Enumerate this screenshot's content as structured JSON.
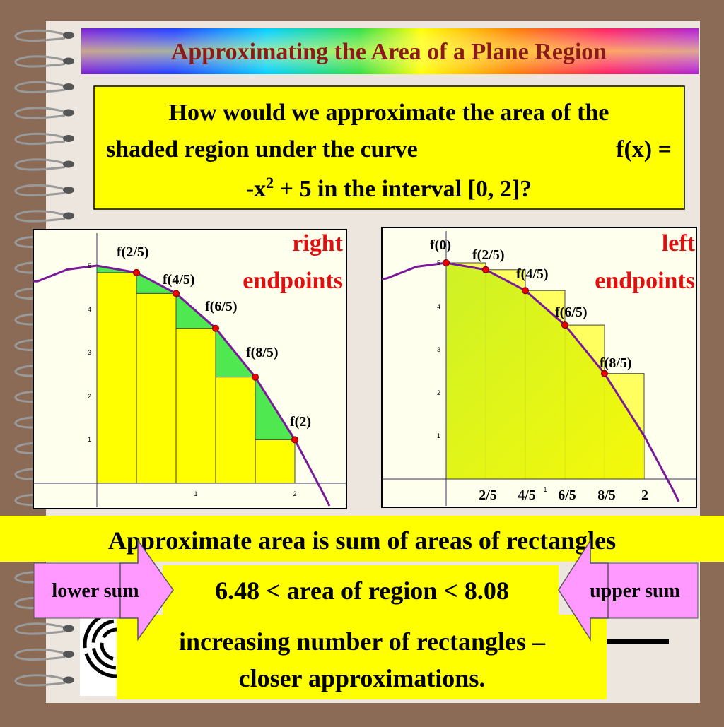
{
  "title": "Approximating the Area of a Plane Region",
  "question": {
    "line1": "How would we approximate the area of the",
    "line2": "shaded region under the curve",
    "line2_func": "f(x) =",
    "line3_start": "-x",
    "line3_sup": "2",
    "line3_end": " + 5 in the interval [0, 2]?"
  },
  "left_graph": {
    "caption": [
      "right",
      "endpoints"
    ],
    "point_labels": [
      "f(2/5)",
      "f(4/5)",
      "f(6/5)",
      "f(8/5)",
      "f(2)"
    ],
    "x_ticks": [
      "1",
      "2"
    ],
    "y_ticks": [
      "1",
      "2",
      "3",
      "4",
      "5"
    ]
  },
  "right_graph": {
    "caption": [
      "left",
      "endpoints"
    ],
    "point_labels": [
      "f(0)",
      "f(2/5)",
      "f(4/5)",
      "f(6/5)",
      "f(8/5)"
    ],
    "x_labels": [
      "2/5",
      "4/5",
      "6/5",
      "8/5",
      "2"
    ],
    "x_ticks": [
      "1"
    ],
    "y_ticks": [
      "1",
      "2",
      "3",
      "4",
      "5"
    ]
  },
  "summary": "Approximate area is sum of areas of rectangles",
  "lower_sum": "lower sum",
  "upper_sum": "upper sum",
  "inequality": "6.48 < area of region < 8.08",
  "conclusion": [
    "increasing number of rectangles –",
    "closer approximations."
  ]
}
